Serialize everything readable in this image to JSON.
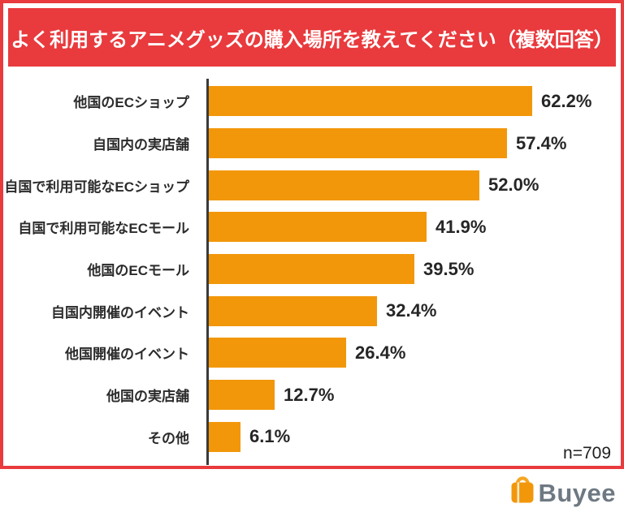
{
  "header": {
    "title": "よく利用するアニメグッズの購入場所を教えてください（複数回答）"
  },
  "footer": {
    "sample_size": "n=709",
    "logo_text": "Buyee"
  },
  "colors": {
    "accent_red": "#E93A3D",
    "bar_orange": "#F2970A",
    "axis_dark": "#3B3B3B",
    "logo_gray": "#6E7982"
  },
  "chart_data": {
    "type": "bar",
    "orientation": "horizontal",
    "title": "よく利用するアニメグッズの購入場所を教えてください（複数回答）",
    "categories": [
      "他国のECショップ",
      "自国内の実店舗",
      "自国で利用可能なECショップ",
      "自国で利用可能なECモール",
      "他国のECモール",
      "自国内開催のイベント",
      "他国開催のイベント",
      "他国の実店舗",
      "その他"
    ],
    "values": [
      62.2,
      57.4,
      52.0,
      41.9,
      39.5,
      32.4,
      26.4,
      12.7,
      6.1
    ],
    "value_labels": [
      "62.2%",
      "57.4%",
      "52.0%",
      "41.9%",
      "39.5%",
      "32.4%",
      "26.4%",
      "12.7%",
      "6.1%"
    ],
    "xlim": [
      0,
      65
    ],
    "grid": false,
    "legend": false,
    "note": "n=709",
    "bar_color": "#F2970A"
  }
}
